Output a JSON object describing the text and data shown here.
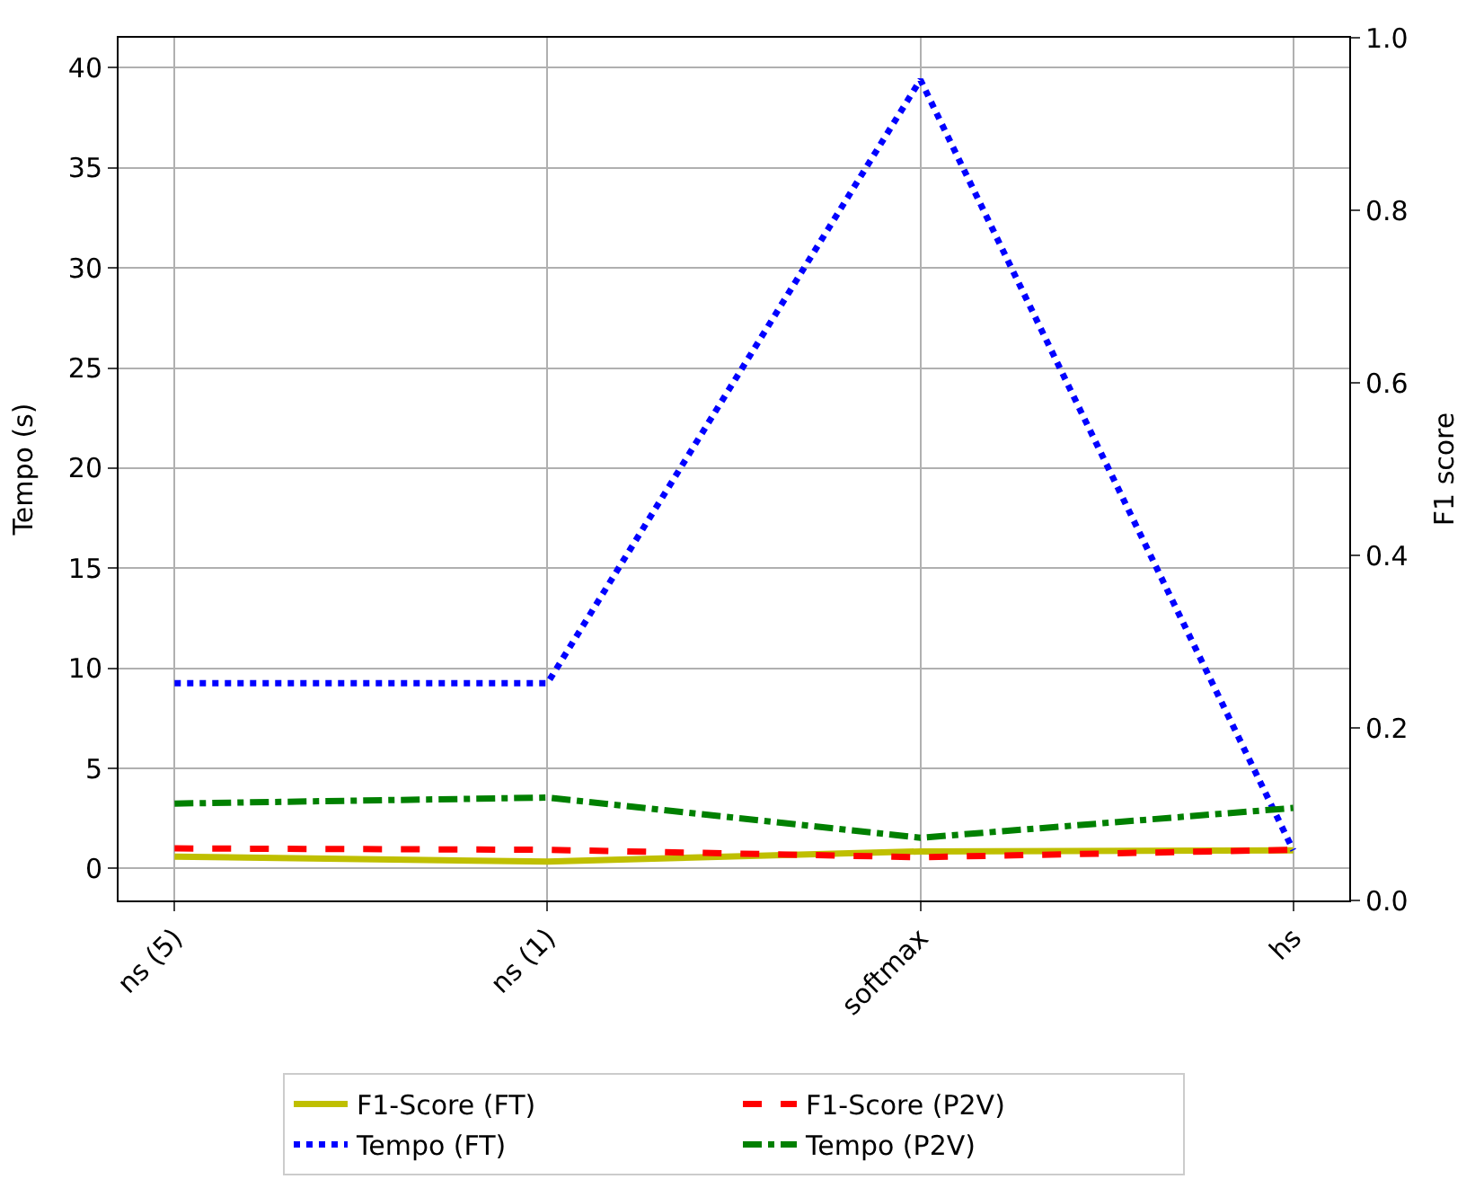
{
  "chart_data": {
    "type": "line",
    "categories": [
      "ns (5)",
      "ns (1)",
      "softmax",
      "hs"
    ],
    "ylabel": "Tempo (s)",
    "y2label": "F1 score",
    "ylim": [
      -1.6,
      41.5
    ],
    "yticks": [
      0,
      5,
      10,
      15,
      20,
      25,
      30,
      35,
      40
    ],
    "y2lim": [
      0,
      1
    ],
    "y2ticks": [
      {
        "value": 0,
        "label": "0.0"
      },
      0.2,
      0.4,
      0.6,
      0.8,
      {
        "value": 1,
        "label": "1.0"
      }
    ],
    "grid": true,
    "legend": "bottom",
    "series": [
      {
        "name": "F1-Score (FT)",
        "color": "#bfbf00",
        "line_style": "solid",
        "values": [
          0.59,
          0.34,
          0.85,
          0.9
        ]
      },
      {
        "name": "F1-Score (P2V)",
        "color": "#ff0000",
        "line_style": "dashed",
        "values": [
          1.0,
          0.93,
          0.56,
          0.93
        ]
      },
      {
        "name": "Tempo (FT)",
        "color": "#0000ff",
        "line_style": "dotted",
        "values": [
          9.25,
          9.25,
          39.4,
          0.9
        ]
      },
      {
        "name": "Tempo (P2V)",
        "color": "#008000",
        "line_style": "dashdot",
        "values": [
          3.24,
          3.54,
          1.53,
          3.02
        ]
      }
    ]
  }
}
